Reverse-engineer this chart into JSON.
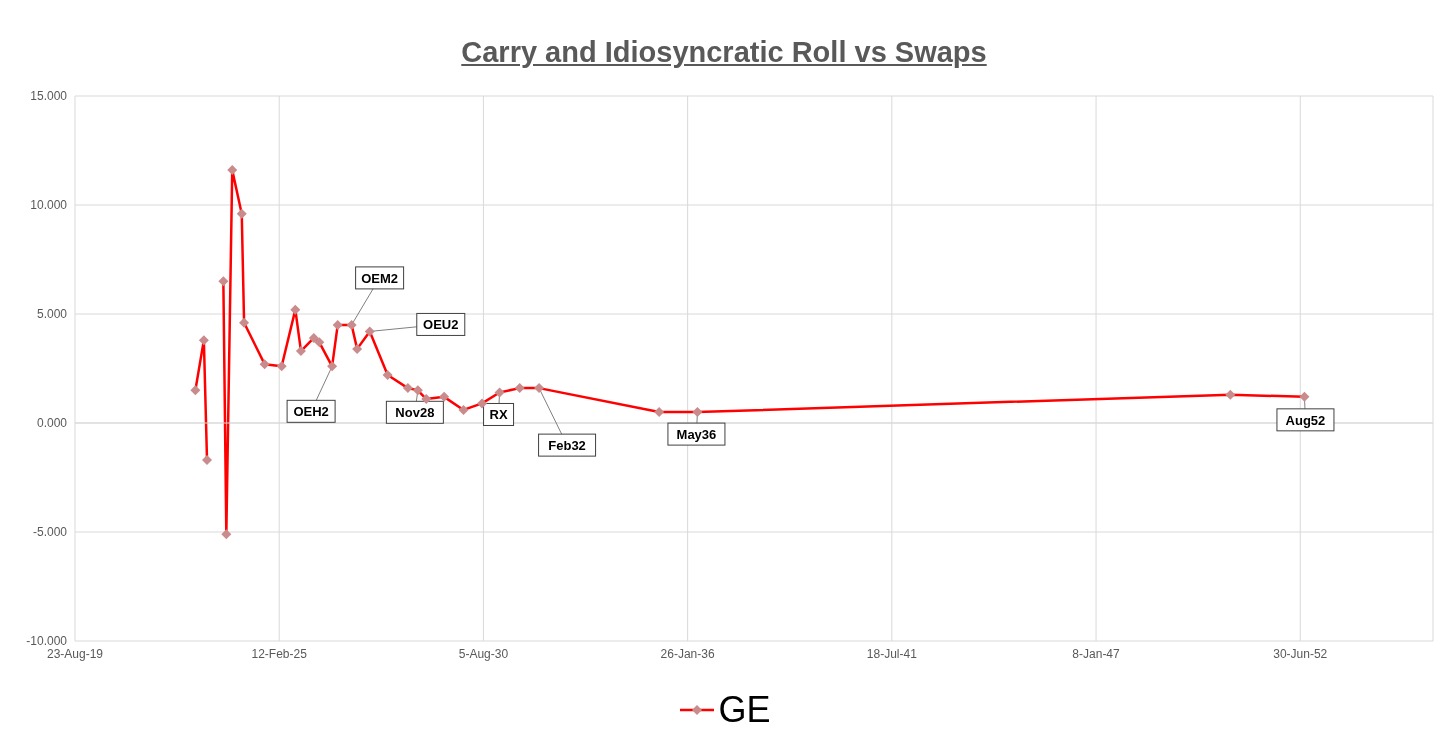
{
  "chart_data": {
    "type": "line",
    "title": "Carry and Idiosyncratic Roll vs Swaps",
    "x": [
      "2022-11-14",
      "2023-02-05",
      "2023-03-08",
      "2023-05-08",
      "2023-08-15",
      "2023-09-13",
      "2023-11-10",
      "2024-02-11",
      "2024-03-05",
      "2024-09-22",
      "2025-03-08",
      "2025-07-20",
      "2025-09-13",
      "2026-01-17",
      "2026-03-12",
      "2026-07-15",
      "2026-09-08",
      "2027-01-22",
      "2027-03-17",
      "2027-07-19",
      "2028-01-10",
      "2028-07-26",
      "2028-11-01",
      "2029-01-22",
      "2029-07-16",
      "2030-01-22",
      "2030-07-22",
      "2031-01-10",
      "2031-07-26",
      "2032-02-01",
      "2035-04-22",
      "2036-05-01",
      "2050-08-15",
      "2052-08-10"
    ],
    "series": [
      {
        "name": "GE",
        "color": "#ff0000",
        "values": [
          1.5,
          3.8,
          -1.7,
          null,
          6.5,
          -5.1,
          11.6,
          9.6,
          4.6,
          2.7,
          2.6,
          5.2,
          3.3,
          3.9,
          3.7,
          2.6,
          4.5,
          4.5,
          3.4,
          4.2,
          2.2,
          1.6,
          1.5,
          1.1,
          1.2,
          0.6,
          0.9,
          1.4,
          1.6,
          1.6,
          0.5,
          0.5,
          1.3,
          1.2
        ]
      }
    ],
    "xlim": [
      "2019-08-23",
      "2056-01-21"
    ],
    "xticks": [
      {
        "value": "2019-08-23",
        "label": "23-Aug-19"
      },
      {
        "value": "2025-02-12",
        "label": "12-Feb-25"
      },
      {
        "value": "2030-08-05",
        "label": "5-Aug-30"
      },
      {
        "value": "2036-01-26",
        "label": "26-Jan-36"
      },
      {
        "value": "2041-07-18",
        "label": "18-Jul-41"
      },
      {
        "value": "2047-01-08",
        "label": "8-Jan-47"
      },
      {
        "value": "2052-06-30",
        "label": "30-Jun-52"
      }
    ],
    "ylim": [
      -10,
      15
    ],
    "yticks": [
      {
        "value": -10,
        "label": "-10.000"
      },
      {
        "value": -5,
        "label": "-5.000"
      },
      {
        "value": 0,
        "label": "0.000"
      },
      {
        "value": 5,
        "label": "5.000"
      },
      {
        "value": 10,
        "label": "10.000"
      },
      {
        "value": 15,
        "label": "15.000"
      }
    ],
    "annotations": [
      {
        "text": "OEH2",
        "x": "2026-07-15",
        "y": 2.6
      },
      {
        "text": "OEM2",
        "x": "2027-01-22",
        "y": 4.5
      },
      {
        "text": "OEU2",
        "x": "2027-07-19",
        "y": 4.2
      },
      {
        "text": "Nov28",
        "x": "2028-11-01",
        "y": 1.5
      },
      {
        "text": "RX",
        "x": "2031-01-10",
        "y": 1.4
      },
      {
        "text": "Feb32",
        "x": "2032-02-01",
        "y": 1.6
      },
      {
        "text": "May36",
        "x": "2036-05-01",
        "y": 0.5
      },
      {
        "text": "Aug52",
        "x": "2052-08-10",
        "y": 1.2
      }
    ],
    "grid": true,
    "legend": "bottom",
    "marker": "diamond",
    "line_style": "solid"
  }
}
